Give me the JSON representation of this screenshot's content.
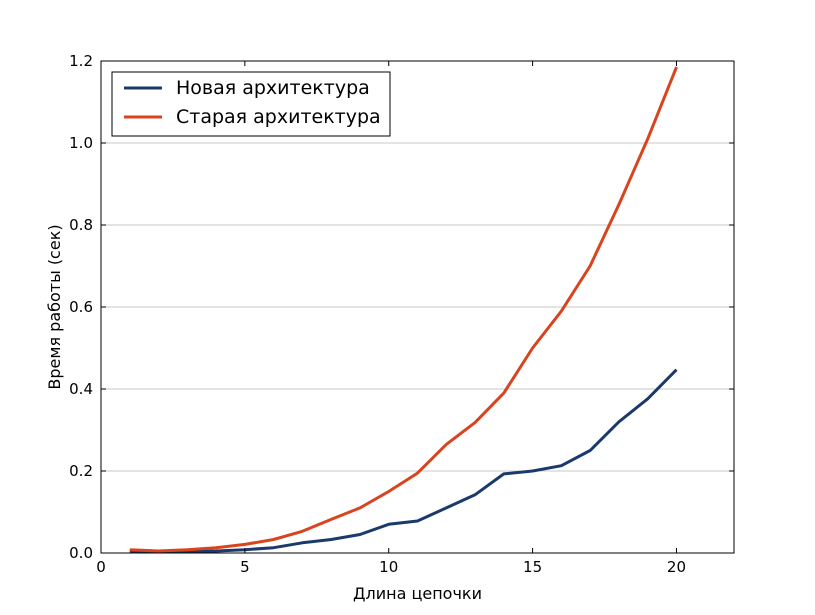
{
  "colors": {
    "new": "#1a3a6b",
    "old": "#d9441f",
    "grid": "#c8c8c8",
    "frame": "#000000"
  },
  "chart_data": {
    "type": "line",
    "title": "",
    "xlabel": "Длина цепочки",
    "ylabel": "Время работы (сек)",
    "xlim": [
      0,
      22
    ],
    "ylim": [
      0.0,
      1.2
    ],
    "xticks": [
      0,
      5,
      10,
      15,
      20
    ],
    "xtick_labels": [
      "0",
      "5",
      "10",
      "15",
      "20"
    ],
    "yticks": [
      0.0,
      0.2,
      0.4,
      0.6,
      0.8,
      1.0,
      1.2
    ],
    "ytick_labels": [
      "0.0",
      "0.2",
      "0.4",
      "0.6",
      "0.8",
      "1.0",
      "1.2"
    ],
    "grid": "horizontal",
    "legend_position": "top-left",
    "x": [
      1,
      2,
      3,
      4,
      5,
      6,
      7,
      8,
      9,
      10,
      11,
      12,
      13,
      14,
      15,
      16,
      17,
      18,
      19,
      20
    ],
    "series": [
      {
        "name": "Новая архитектура",
        "color_key": "new",
        "values": [
          0.005,
          0.003,
          0.004,
          0.005,
          0.008,
          0.013,
          0.025,
          0.033,
          0.045,
          0.07,
          0.078,
          0.11,
          0.142,
          0.193,
          0.2,
          0.213,
          0.25,
          0.32,
          0.376,
          0.447
        ]
      },
      {
        "name": "Старая архитектура",
        "color_key": "old",
        "values": [
          0.008,
          0.005,
          0.008,
          0.013,
          0.021,
          0.033,
          0.053,
          0.082,
          0.11,
          0.15,
          0.195,
          0.265,
          0.318,
          0.39,
          0.5,
          0.59,
          0.7,
          0.85,
          1.01,
          1.185
        ]
      }
    ]
  }
}
